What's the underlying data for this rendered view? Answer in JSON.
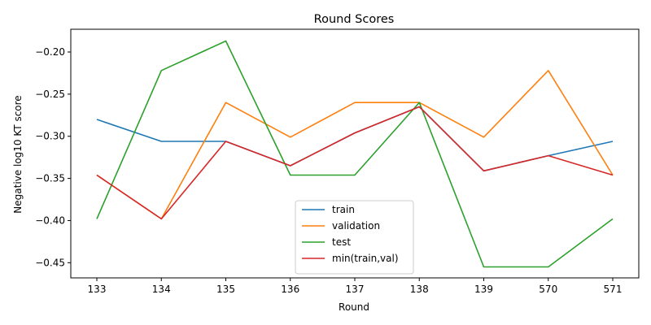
{
  "chart_data": {
    "type": "line",
    "title": "Round Scores",
    "xlabel": "Round",
    "ylabel": "Negative log10 KT score",
    "categories": [
      "133",
      "134",
      "135",
      "136",
      "137",
      "138",
      "139",
      "570",
      "571"
    ],
    "ylim": [
      -0.468,
      -0.173
    ],
    "yticks": [
      -0.45,
      -0.4,
      -0.35,
      -0.3,
      -0.25,
      -0.2
    ],
    "ytick_labels": [
      "−0.45",
      "−0.40",
      "−0.35",
      "−0.30",
      "−0.25",
      "−0.20"
    ],
    "grid": false,
    "legend_position": "lower center",
    "series": [
      {
        "name": "train",
        "color": "#1f77b4",
        "values": [
          -0.28,
          -0.306,
          -0.306,
          -0.335,
          -0.296,
          -0.265,
          -0.341,
          -0.323,
          -0.306
        ]
      },
      {
        "name": "validation",
        "color": "#ff7f0e",
        "values": [
          -0.346,
          -0.398,
          -0.26,
          -0.301,
          -0.26,
          -0.26,
          -0.301,
          -0.222,
          -0.346
        ]
      },
      {
        "name": "test",
        "color": "#2ca02c",
        "values": [
          -0.398,
          -0.222,
          -0.187,
          -0.346,
          -0.346,
          -0.26,
          -0.455,
          -0.455,
          -0.398
        ]
      },
      {
        "name": "min(train,val)",
        "color": "#d62728",
        "values": [
          -0.346,
          -0.398,
          -0.306,
          -0.335,
          -0.296,
          -0.265,
          -0.341,
          -0.323,
          -0.346
        ]
      }
    ]
  }
}
